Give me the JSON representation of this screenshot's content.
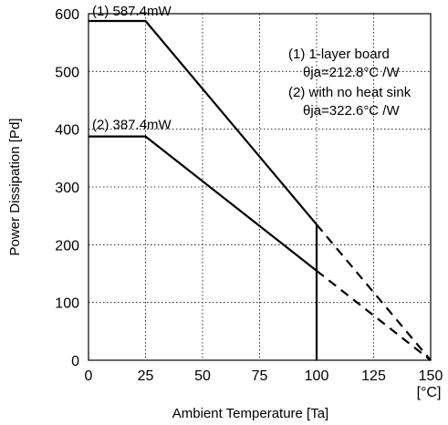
{
  "chart_data": {
    "type": "line",
    "xlabel": "Ambient Temperature [Ta]",
    "ylabel": "Power Dissipation [Pd]",
    "x_unit": "[°C]",
    "xlim": [
      0,
      150
    ],
    "ylim": [
      0,
      600
    ],
    "x_ticks": [
      0,
      25,
      50,
      75,
      100,
      125,
      150
    ],
    "y_ticks": [
      0,
      100,
      200,
      300,
      400,
      500,
      600
    ],
    "grid": true,
    "series": [
      {
        "label": "(1) 587.4mW",
        "points": [
          [
            0,
            587.4
          ],
          [
            25,
            587.4
          ],
          [
            100,
            235
          ]
        ],
        "extrapolated": [
          [
            100,
            235
          ],
          [
            150,
            0
          ]
        ]
      },
      {
        "label": "(2) 387.4mW",
        "points": [
          [
            0,
            387.4
          ],
          [
            25,
            387.4
          ],
          [
            100,
            155
          ]
        ],
        "extrapolated": [
          [
            100,
            155
          ],
          [
            150,
            0
          ]
        ]
      }
    ],
    "vertical_marker": {
      "x": 100,
      "y_from": 0,
      "y_to": 235
    },
    "legend_lines": [
      "(1) 1-layer board",
      "θja=212.8°C /W",
      "(2) with no heat sink",
      "θja=322.6°C /W"
    ]
  }
}
